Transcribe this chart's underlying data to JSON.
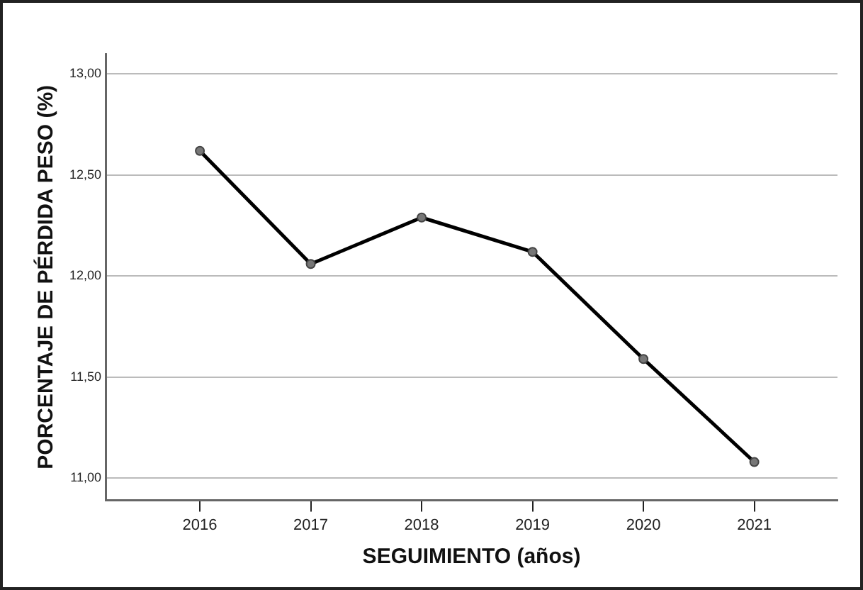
{
  "chart_data": {
    "type": "line",
    "xlabel": "SEGUIMIENTO (años)",
    "ylabel": "PORCENTAJE DE PÉRDIDA PESO (%)",
    "x": [
      2016,
      2017,
      2018,
      2019,
      2020,
      2021
    ],
    "series": [
      {
        "color": "#000000",
        "values": [
          12.62,
          12.06,
          12.29,
          12.12,
          11.59,
          11.08
        ]
      }
    ],
    "xlim": [
      2015.15,
      2021.75
    ],
    "xticks": [
      2016,
      2017,
      2018,
      2019,
      2020,
      2021
    ],
    "ylim": [
      10.89,
      13.1
    ],
    "yticks": [
      {
        "value": 11,
        "label": "11,00"
      },
      {
        "value": 11.5,
        "label": "11,50"
      },
      {
        "value": 12,
        "label": "12,00"
      },
      {
        "value": 12.5,
        "label": "12,50"
      },
      {
        "value": 13,
        "label": "13,00"
      }
    ],
    "grid": "y",
    "legend": false,
    "marker": "circle",
    "line_style": "solid"
  }
}
